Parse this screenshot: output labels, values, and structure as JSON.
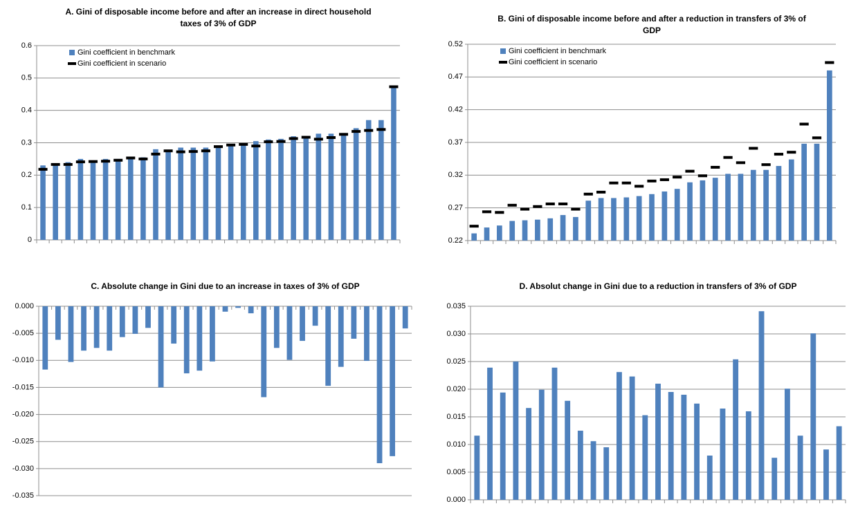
{
  "chart_data": [
    {
      "type": "bar",
      "title": "A. Gini of disposable income before and after an increase in direct household taxes of 3% of GDP",
      "categories": [
        null,
        null,
        null,
        null,
        null,
        null,
        null,
        null,
        null,
        null,
        null,
        null,
        null,
        null,
        null,
        null,
        null,
        null,
        null,
        null,
        null,
        null,
        null,
        null,
        null,
        null,
        null,
        null,
        null
      ],
      "series": [
        {
          "name": "Gini coefficient in benchmark",
          "color": "#4f81bd",
          "mark": "bar",
          "values": [
            0.23,
            0.235,
            0.24,
            0.25,
            0.245,
            0.25,
            0.25,
            0.255,
            0.255,
            0.28,
            0.278,
            0.285,
            0.285,
            0.285,
            0.29,
            0.29,
            0.295,
            0.305,
            0.31,
            0.312,
            0.32,
            0.32,
            0.328,
            0.328,
            0.33,
            0.345,
            0.37,
            0.37,
            0.475
          ]
        },
        {
          "name": "Gini coefficient in scenario",
          "color": "#000000",
          "mark": "dash",
          "values": [
            0.218,
            0.233,
            0.233,
            0.241,
            0.242,
            0.243,
            0.246,
            0.253,
            0.25,
            0.265,
            0.275,
            0.272,
            0.273,
            0.275,
            0.288,
            0.293,
            0.295,
            0.29,
            0.303,
            0.304,
            0.313,
            0.317,
            0.311,
            0.316,
            0.326,
            0.335,
            0.338,
            0.341,
            0.473
          ]
        }
      ],
      "ylim": [
        0,
        0.6
      ],
      "yticks": [
        0,
        0.1,
        0.2,
        0.3,
        0.4,
        0.5,
        0.6
      ],
      "grid": true,
      "legend": "upper left"
    },
    {
      "type": "bar",
      "title": "B.  Gini of disposable income before and after a reduction in transfers of 3% of GDP",
      "categories": [
        null,
        null,
        null,
        null,
        null,
        null,
        null,
        null,
        null,
        null,
        null,
        null,
        null,
        null,
        null,
        null,
        null,
        null,
        null,
        null,
        null,
        null,
        null,
        null,
        null,
        null,
        null,
        null,
        null
      ],
      "series": [
        {
          "name": "Gini coefficient in benchmark",
          "color": "#4f81bd",
          "mark": "bar",
          "values": [
            0.231,
            0.24,
            0.243,
            0.25,
            0.251,
            0.252,
            0.254,
            0.259,
            0.256,
            0.281,
            0.285,
            0.285,
            0.286,
            0.288,
            0.291,
            0.295,
            0.299,
            0.309,
            0.312,
            0.316,
            0.322,
            0.322,
            0.328,
            0.328,
            0.334,
            0.344,
            0.368,
            0.368,
            0.48
          ]
        },
        {
          "name": "Gini coefficient in scenario",
          "color": "#000000",
          "mark": "dash",
          "values": [
            0.242,
            0.264,
            0.263,
            0.274,
            0.268,
            0.272,
            0.276,
            0.276,
            0.268,
            0.291,
            0.294,
            0.308,
            0.308,
            0.303,
            0.311,
            0.313,
            0.317,
            0.326,
            0.319,
            0.332,
            0.347,
            0.339,
            0.361,
            0.336,
            0.352,
            0.355,
            0.398,
            0.377,
            0.492
          ]
        }
      ],
      "ylim": [
        0.22,
        0.52
      ],
      "yticks": [
        0.22,
        0.27,
        0.32,
        0.37,
        0.42,
        0.47,
        0.52
      ],
      "grid": true,
      "legend": "upper left"
    },
    {
      "type": "bar",
      "title": "C.  Absolute change in Gini due to an increase in taxes of 3% of GDP",
      "categories": [
        null,
        null,
        null,
        null,
        null,
        null,
        null,
        null,
        null,
        null,
        null,
        null,
        null,
        null,
        null,
        null,
        null,
        null,
        null,
        null,
        null,
        null,
        null,
        null,
        null,
        null,
        null,
        null,
        null
      ],
      "series": [
        {
          "color": "#4f81bd",
          "mark": "bar",
          "values": [
            -0.0117,
            -0.0062,
            -0.0103,
            -0.0082,
            -0.0077,
            -0.0082,
            -0.0057,
            -0.0051,
            -0.004,
            -0.015,
            -0.0069,
            -0.0124,
            -0.0119,
            -0.0102,
            -0.001,
            -0.0003,
            -0.0013,
            -0.0168,
            -0.0077,
            -0.0099,
            -0.0064,
            -0.0036,
            -0.0147,
            -0.0112,
            -0.006,
            -0.0101,
            -0.029,
            -0.0277,
            -0.0041
          ]
        }
      ],
      "ylim": [
        -0.035,
        0
      ],
      "yticks": [
        {
          "value": -0.035,
          "label": "-0.035"
        },
        {
          "value": -0.03,
          "label": "-0.030"
        },
        {
          "value": -0.025,
          "label": "-0.025"
        },
        {
          "value": -0.02,
          "label": "-0.020"
        },
        {
          "value": -0.015,
          "label": "-0.015"
        },
        {
          "value": -0.01,
          "label": "-0.010"
        },
        {
          "value": -0.005,
          "label": "-0.005"
        },
        {
          "value": 0,
          "label": "0.000"
        }
      ],
      "grid": true
    },
    {
      "type": "bar",
      "title": "D. Absolut change in Gini due to a reduction in transfers of 3% of GDP",
      "categories": [
        null,
        null,
        null,
        null,
        null,
        null,
        null,
        null,
        null,
        null,
        null,
        null,
        null,
        null,
        null,
        null,
        null,
        null,
        null,
        null,
        null,
        null,
        null,
        null,
        null,
        null,
        null,
        null,
        null
      ],
      "series": [
        {
          "color": "#4f81bd",
          "mark": "bar",
          "values": [
            0.0116,
            0.0239,
            0.0194,
            0.025,
            0.0166,
            0.0199,
            0.0239,
            0.0179,
            0.0125,
            0.0106,
            0.0095,
            0.0231,
            0.0223,
            0.0153,
            0.021,
            0.0195,
            0.019,
            0.0174,
            0.008,
            0.0165,
            0.0254,
            0.016,
            0.0341,
            0.0076,
            0.0201,
            0.0116,
            0.0301,
            0.0091,
            0.0133
          ]
        }
      ],
      "ylim": [
        0,
        0.035
      ],
      "yticks": [
        {
          "value": 0,
          "label": "0.000"
        },
        {
          "value": 0.005,
          "label": "0.005"
        },
        {
          "value": 0.01,
          "label": "0.010"
        },
        {
          "value": 0.015,
          "label": "0.015"
        },
        {
          "value": 0.02,
          "label": "0.020"
        },
        {
          "value": 0.025,
          "label": "0.025"
        },
        {
          "value": 0.03,
          "label": "0.030"
        },
        {
          "value": 0.035,
          "label": "0.035"
        }
      ],
      "grid": true
    }
  ]
}
